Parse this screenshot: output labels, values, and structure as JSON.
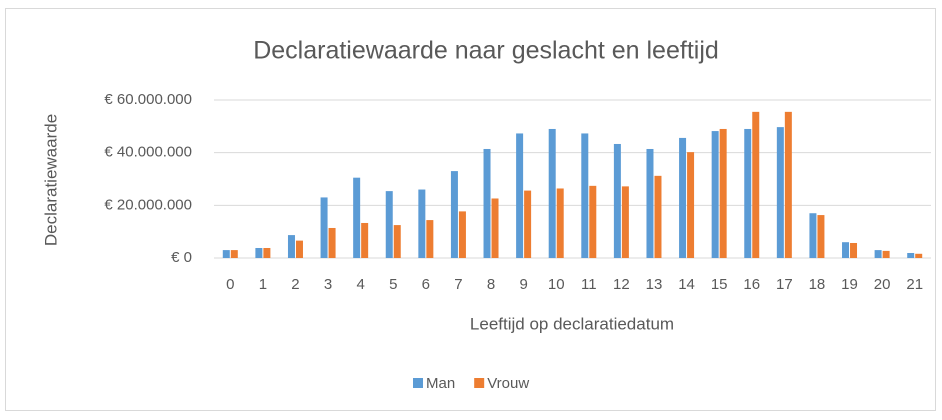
{
  "chart_data": {
    "type": "bar",
    "title": "Declaratiewaarde naar geslacht en leeftijd",
    "y_label": "Declaratiewaarde",
    "x_label": "Leeftijd op declaratiedatum",
    "categories": [
      "0",
      "1",
      "2",
      "3",
      "4",
      "5",
      "6",
      "7",
      "8",
      "9",
      "10",
      "11",
      "12",
      "13",
      "14",
      "15",
      "16",
      "17",
      "18",
      "19",
      "20",
      "21"
    ],
    "series": [
      {
        "name": "Man",
        "color": "#5B9BD5",
        "values": [
          3000000,
          3800000,
          8700000,
          23000000,
          30500000,
          25400000,
          26000000,
          33000000,
          41400000,
          47300000,
          49000000,
          47300000,
          43300000,
          41400000,
          45600000,
          48200000,
          49000000,
          49700000,
          17000000,
          6000000,
          3000000,
          1900000
        ]
      },
      {
        "name": "Vrouw",
        "color": "#ED7D31",
        "values": [
          3000000,
          3800000,
          6600000,
          11400000,
          13300000,
          12500000,
          14400000,
          17700000,
          22600000,
          25600000,
          26400000,
          27400000,
          27200000,
          31200000,
          40200000,
          49000000,
          55500000,
          55500000,
          16300000,
          5700000,
          2700000,
          1600000
        ]
      }
    ],
    "ylim": [
      0,
      60000000
    ],
    "yticks": [
      {
        "value": 0,
        "label": "€ 0"
      },
      {
        "value": 20000000,
        "label": "€ 20.000.000"
      },
      {
        "value": 40000000,
        "label": "€ 40.000.000"
      },
      {
        "value": 60000000,
        "label": "€ 60.000.000"
      }
    ],
    "grid": true,
    "legend": "bottom"
  }
}
